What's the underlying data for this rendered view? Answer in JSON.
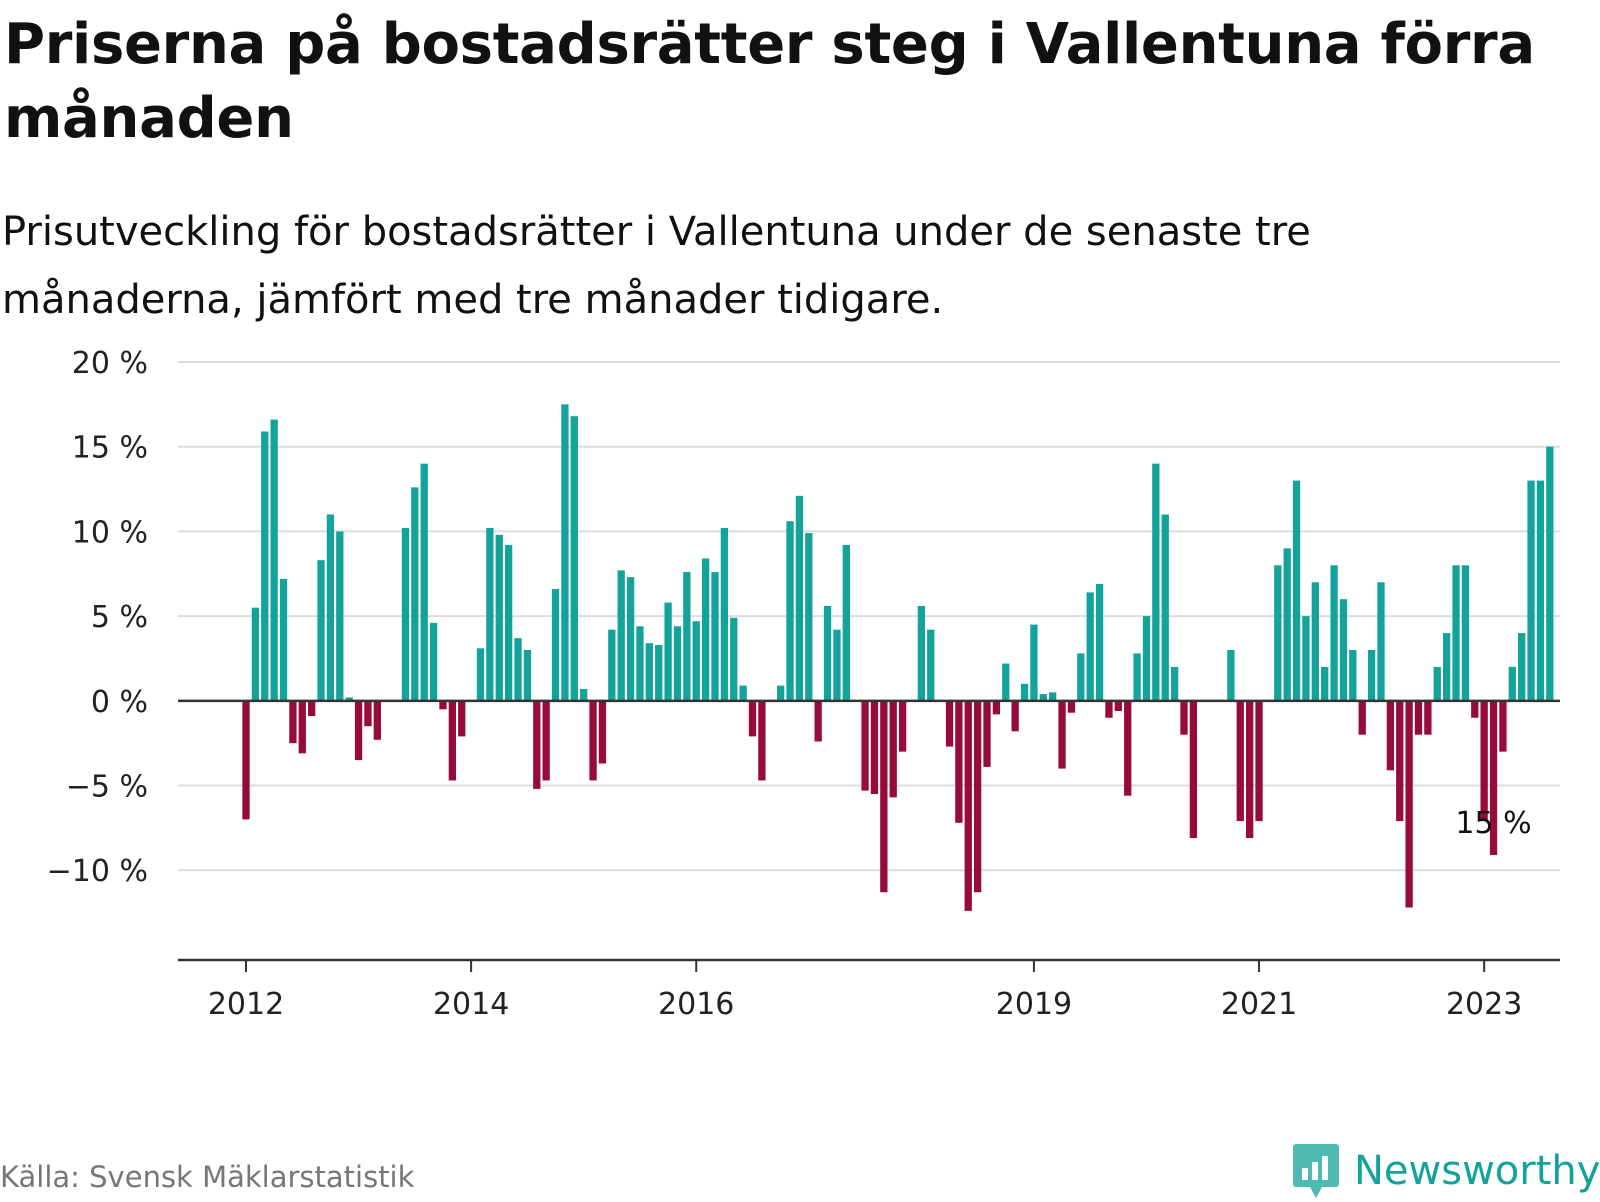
{
  "title": "Priserna på bostadsrätter steg i Vallentuna förra månaden",
  "subtitle": "Prisutveckling för bostadsrätter i Vallentuna under de senaste tre månaderna, jämfört med tre månader tidigare.",
  "source": "Källa: Svensk Mäklarstatistik",
  "brand": "Newsworthy",
  "colors": {
    "positive": "#14a39a",
    "negative": "#990a3c",
    "grid": "#dcdcdc",
    "axis": "#333333",
    "brand": "#14a39a"
  },
  "chart_data": {
    "type": "bar",
    "x_start": "2012-01",
    "x_interval": "month",
    "ylim": [
      -14,
      20
    ],
    "y_ticks": [
      -10,
      -5,
      0,
      5,
      10,
      15,
      20
    ],
    "y_tick_labels": [
      "−10 %",
      "−5 %",
      "0 %",
      "5 %",
      "10 %",
      "15 %",
      "20 %"
    ],
    "x_ticks": [
      {
        "label": "2012",
        "x": "2012-01"
      },
      {
        "label": "2014",
        "x": "2014-01"
      },
      {
        "label": "2016",
        "x": "2016-01"
      },
      {
        "label": "2019",
        "x": "2019-01"
      },
      {
        "label": "2021",
        "x": "2021-01"
      },
      {
        "label": "2023",
        "x": "2023-01"
      }
    ],
    "grid": true,
    "annotation": {
      "x": "2023-02",
      "label": "15 %"
    },
    "values": [
      -7,
      5.5,
      15.9,
      16.6,
      7.2,
      -2.5,
      -3.1,
      -0.9,
      8.3,
      11,
      10,
      0.2,
      -3.5,
      -1.5,
      -2.3,
      0,
      0,
      10.2,
      12.6,
      14,
      4.6,
      -0.5,
      -4.7,
      -2.1,
      0,
      3.1,
      10.2,
      9.8,
      9.2,
      3.7,
      3,
      -5.2,
      -4.7,
      6.6,
      17.5,
      16.8,
      0.7,
      -4.7,
      -3.7,
      4.2,
      7.7,
      7.3,
      4.4,
      3.4,
      3.3,
      5.8,
      4.4,
      7.6,
      4.7,
      8.4,
      7.6,
      10.2,
      4.9,
      0.9,
      -2.1,
      -4.7,
      0,
      0.9,
      10.6,
      12.1,
      9.9,
      -2.4,
      5.6,
      4.2,
      9.2,
      0,
      -5.3,
      -5.5,
      -11.3,
      -5.7,
      -3,
      0,
      5.6,
      4.2,
      0,
      -2.7,
      -7.2,
      -12.4,
      -11.3,
      -3.9,
      -0.8,
      2.2,
      -1.8,
      1,
      4.5,
      0.4,
      0.5,
      -4,
      -0.7,
      2.8,
      6.4,
      6.9,
      -1,
      -0.6,
      -5.6,
      2.8,
      5,
      14,
      11,
      2,
      -2,
      -8.1,
      0,
      0,
      0,
      3,
      -7.1,
      -8.1,
      -7.1,
      0,
      8,
      9,
      13,
      5,
      7,
      2,
      8,
      6,
      3,
      -2,
      3,
      7,
      -4.1,
      -7.1,
      -12.2,
      -2,
      -2,
      2,
      4,
      8,
      8,
      -1,
      -7.1,
      -9.1,
      -3,
      2,
      4,
      13,
      13,
      15
    ]
  }
}
